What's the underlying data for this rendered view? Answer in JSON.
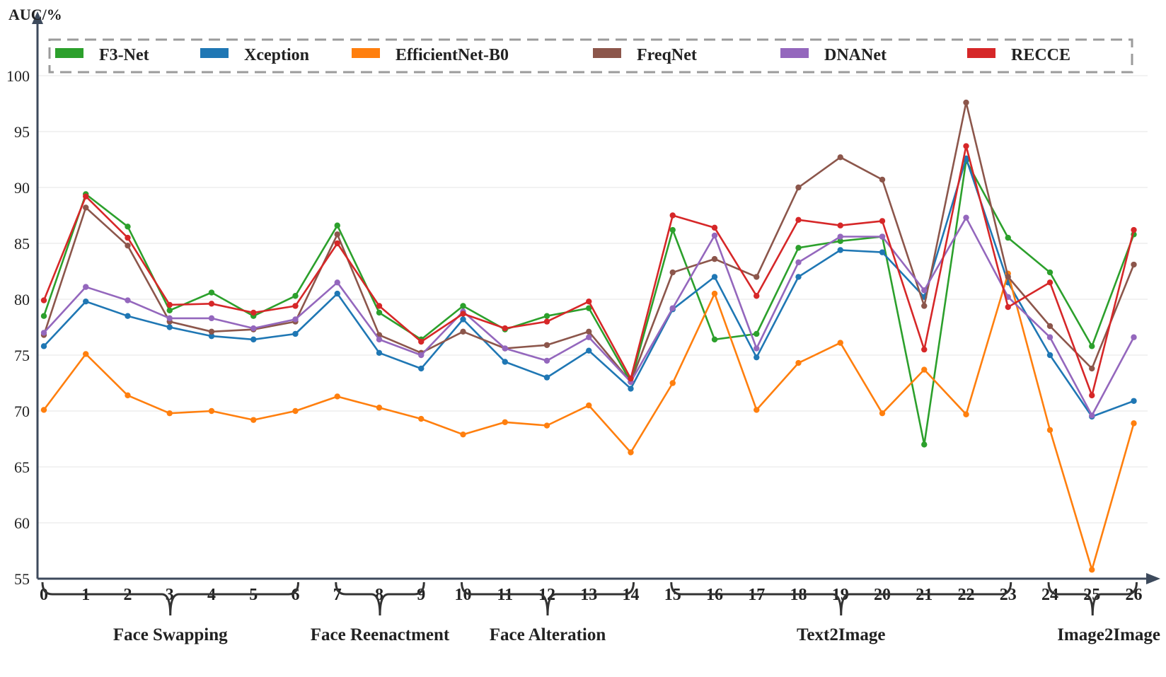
{
  "chart_data": {
    "type": "line",
    "ylabel": "AUC/%",
    "xlabel": "",
    "ylim": [
      55,
      103
    ],
    "yticks": [
      55,
      60,
      65,
      70,
      75,
      80,
      85,
      90,
      95,
      100
    ],
    "x": [
      0,
      1,
      2,
      3,
      4,
      5,
      6,
      7,
      8,
      9,
      10,
      11,
      12,
      13,
      14,
      15,
      16,
      17,
      18,
      19,
      20,
      21,
      22,
      23,
      24,
      25,
      26
    ],
    "grid": true,
    "legend_position": "top",
    "series": [
      {
        "name": "F3-Net",
        "color": "#2ca02c",
        "values": [
          78.5,
          89.4,
          86.5,
          79.0,
          80.6,
          78.5,
          80.3,
          86.6,
          78.8,
          76.4,
          79.4,
          77.3,
          78.5,
          79.2,
          72.6,
          86.2,
          76.4,
          76.9,
          84.6,
          85.2,
          85.6,
          67.0,
          92.4,
          85.5,
          82.4,
          75.8,
          85.8
        ]
      },
      {
        "name": "Xception",
        "color": "#1f77b4",
        "values": [
          75.8,
          79.8,
          78.5,
          77.5,
          76.7,
          76.4,
          76.9,
          80.5,
          75.2,
          73.8,
          78.2,
          74.4,
          73.0,
          75.4,
          72.0,
          79.1,
          82.0,
          74.8,
          82.0,
          84.4,
          84.2,
          80.2,
          92.6,
          81.5,
          75.0,
          69.5,
          70.9
        ]
      },
      {
        "name": "EfficientNet-B0",
        "color": "#ff7f0e",
        "values": [
          70.1,
          75.1,
          71.4,
          69.8,
          70.0,
          69.2,
          70.0,
          71.3,
          70.3,
          69.3,
          67.9,
          69.0,
          68.7,
          70.5,
          66.3,
          72.5,
          80.5,
          70.1,
          74.3,
          76.1,
          69.8,
          73.7,
          69.7,
          82.3,
          68.3,
          55.8,
          68.9
        ]
      },
      {
        "name": "FreqNet",
        "color": "#8c564b",
        "values": [
          76.8,
          88.2,
          84.8,
          78.0,
          77.1,
          77.3,
          78.0,
          85.8,
          76.8,
          75.2,
          77.1,
          75.6,
          75.9,
          77.1,
          72.6,
          82.4,
          83.6,
          82.0,
          90.0,
          92.7,
          90.7,
          79.4,
          97.6,
          82.0,
          77.6,
          73.8,
          83.1
        ]
      },
      {
        "name": "DNANet",
        "color": "#9467bd",
        "values": [
          77.0,
          81.1,
          79.9,
          78.3,
          78.3,
          77.4,
          78.2,
          81.5,
          76.4,
          75.0,
          78.9,
          75.6,
          74.5,
          76.6,
          72.6,
          79.2,
          85.7,
          75.6,
          83.3,
          85.6,
          85.6,
          80.8,
          87.3,
          80.2,
          76.6,
          69.6,
          76.6
        ]
      },
      {
        "name": "RECCE",
        "color": "#d62728",
        "values": [
          79.9,
          89.2,
          85.5,
          79.5,
          79.6,
          78.8,
          79.4,
          85.0,
          79.4,
          76.2,
          78.7,
          77.4,
          78.0,
          79.8,
          72.9,
          87.5,
          86.4,
          80.3,
          87.1,
          86.6,
          87.0,
          75.5,
          93.7,
          79.3,
          81.5,
          71.4,
          86.2
        ]
      }
    ],
    "groups": [
      {
        "label": "Face Swapping",
        "start": 0,
        "end": 6
      },
      {
        "label": "Face Reenactment",
        "start": 7,
        "end": 9
      },
      {
        "label": "Face Alteration",
        "start": 10,
        "end": 14
      },
      {
        "label": "Text2Image",
        "start": 15,
        "end": 23
      },
      {
        "label": "Image2Image",
        "start": 24,
        "end": 26
      }
    ]
  }
}
